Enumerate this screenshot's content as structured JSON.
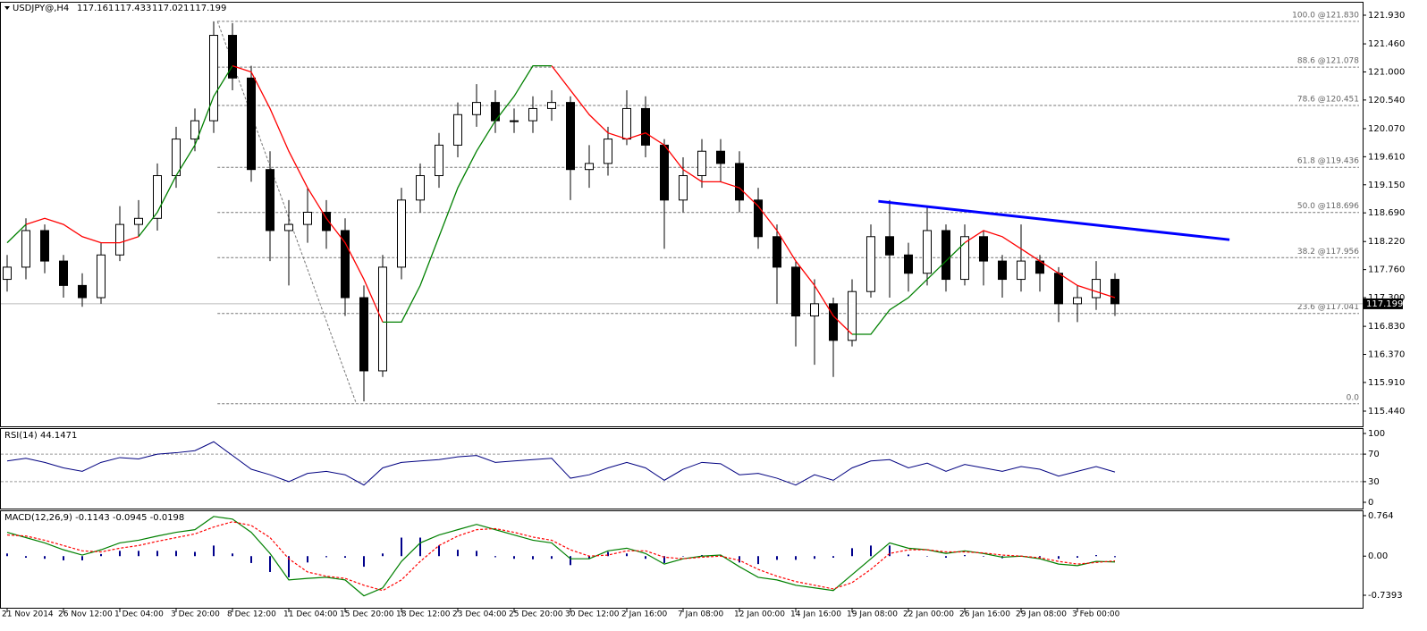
{
  "chart_data": [
    {
      "type": "candlestick",
      "title": "USDJPY@,H4",
      "header_values": [
        117.161,
        117.433,
        117.021,
        117.199
      ],
      "categories": [
        "21 Nov 2014",
        null,
        null,
        "26 Nov 12:00",
        null,
        null,
        "1 Dec 04:00",
        null,
        null,
        "3 Dec 20:00",
        null,
        null,
        "8 Dec 12:00",
        null,
        null,
        "11 Dec 04:00",
        null,
        null,
        "15 Dec 20:00",
        null,
        null,
        "18 Dec 12:00",
        null,
        null,
        "23 Dec 04:00",
        null,
        null,
        "25 Dec 20:00",
        null,
        null,
        "30 Dec 12:00",
        null,
        null,
        "2 Jan 16:00",
        null,
        null,
        "7 Jan 08:00",
        null,
        null,
        "12 Jan 00:00",
        null,
        null,
        "14 Jan 16:00",
        null,
        null,
        "19 Jan 08:00",
        null,
        null,
        "22 Jan 00:00",
        null,
        null,
        "26 Jan 16:00",
        null,
        null,
        "29 Jan 08:00",
        null,
        null,
        "3 Feb 00:00",
        null,
        null
      ],
      "open": [
        117.6,
        117.8,
        118.4,
        117.9,
        117.5,
        117.3,
        118.0,
        118.5,
        118.6,
        119.3,
        119.9,
        120.2,
        121.6,
        120.9,
        119.4,
        118.4,
        118.5,
        118.7,
        118.4,
        117.3,
        116.1,
        117.8,
        118.9,
        119.3,
        119.8,
        120.3,
        120.5,
        120.2,
        120.2,
        120.4,
        120.5,
        119.4,
        119.5,
        119.9,
        120.4,
        119.8,
        118.9,
        119.3,
        119.7,
        119.5,
        118.9,
        118.3,
        117.8,
        117.0,
        117.2,
        116.6,
        117.4,
        118.3,
        118.0,
        117.7,
        118.4,
        117.6,
        118.3,
        117.9,
        117.6,
        117.9,
        117.7,
        117.2,
        117.3,
        117.6
      ],
      "high": [
        118.0,
        118.6,
        118.5,
        118.0,
        117.7,
        118.2,
        118.8,
        118.9,
        119.5,
        120.1,
        120.4,
        121.83,
        121.8,
        121.1,
        119.7,
        118.9,
        119.1,
        118.9,
        118.6,
        117.5,
        118.0,
        119.1,
        119.5,
        120.0,
        120.5,
        120.8,
        120.7,
        120.4,
        120.6,
        120.7,
        120.6,
        119.8,
        120.1,
        120.7,
        120.6,
        119.9,
        119.6,
        119.9,
        119.9,
        119.7,
        119.1,
        118.5,
        117.9,
        117.6,
        117.3,
        117.6,
        118.5,
        118.9,
        118.2,
        118.8,
        118.5,
        118.5,
        118.4,
        118.0,
        118.5,
        118.0,
        117.8,
        117.5,
        117.9,
        117.7
      ],
      "low": [
        117.4,
        117.6,
        117.7,
        117.3,
        117.15,
        117.2,
        117.9,
        118.3,
        118.4,
        119.1,
        119.7,
        120.0,
        120.7,
        119.2,
        117.9,
        117.5,
        118.2,
        118.1,
        117.0,
        115.6,
        116.0,
        117.6,
        118.7,
        119.1,
        119.6,
        120.1,
        120.0,
        120.0,
        120.0,
        120.2,
        118.9,
        119.1,
        119.3,
        119.8,
        119.6,
        118.1,
        118.7,
        119.1,
        119.2,
        118.7,
        118.1,
        117.2,
        116.5,
        116.2,
        116.0,
        116.5,
        117.3,
        117.3,
        117.4,
        117.5,
        117.4,
        117.5,
        117.5,
        117.3,
        117.4,
        117.4,
        116.9,
        116.9,
        117.1,
        117.0
      ],
      "close": [
        117.8,
        118.4,
        117.9,
        117.5,
        117.3,
        118.0,
        118.5,
        118.6,
        119.3,
        119.9,
        120.2,
        121.6,
        120.9,
        119.4,
        118.4,
        118.5,
        118.7,
        118.4,
        117.3,
        116.1,
        117.8,
        118.9,
        119.3,
        119.8,
        120.3,
        120.5,
        120.2,
        120.2,
        120.4,
        120.5,
        119.4,
        119.5,
        119.9,
        120.4,
        119.8,
        118.9,
        119.3,
        119.7,
        119.5,
        118.9,
        118.3,
        117.8,
        117.0,
        117.2,
        116.6,
        117.4,
        118.3,
        118.0,
        117.7,
        118.4,
        117.6,
        118.3,
        117.9,
        117.6,
        117.9,
        117.7,
        117.2,
        117.3,
        117.6,
        117.2
      ],
      "series": [
        {
          "color": "#008000",
          "values": [
            118.2,
            118.5,
            null,
            null,
            null,
            null,
            null,
            118.3,
            118.7,
            119.3,
            119.8,
            120.6,
            121.1,
            null,
            null,
            null,
            null,
            null,
            null,
            null,
            116.9,
            116.9,
            117.5,
            118.3,
            119.1,
            119.7,
            120.2,
            120.6,
            121.1,
            121.1,
            null,
            null,
            null,
            null,
            null,
            null,
            null,
            null,
            null,
            null,
            null,
            null,
            null,
            null,
            null,
            116.7,
            116.7,
            117.1,
            117.3,
            117.6,
            117.9,
            118.2,
            null,
            null,
            null,
            null,
            null,
            null,
            null,
            null
          ]
        },
        {
          "color": "#ff0000",
          "values": [
            null,
            118.5,
            118.6,
            118.5,
            118.3,
            118.2,
            118.2,
            118.3,
            null,
            null,
            null,
            null,
            121.1,
            121.0,
            120.4,
            119.7,
            119.1,
            118.6,
            118.2,
            117.6,
            116.9,
            null,
            null,
            null,
            null,
            null,
            null,
            null,
            null,
            121.1,
            120.7,
            120.3,
            120.0,
            119.9,
            120.0,
            119.8,
            119.4,
            119.2,
            119.2,
            119.1,
            118.8,
            118.4,
            117.9,
            117.5,
            117.0,
            116.7,
            null,
            null,
            null,
            null,
            null,
            118.2,
            118.4,
            118.3,
            118.1,
            117.9,
            117.7,
            117.5,
            117.4,
            117.3
          ]
        }
      ],
      "fib_anchor_x": [
        11.2,
        18.6
      ],
      "fib_levels": [
        {
          "value": 121.83,
          "label": "100.0 @121.830"
        },
        {
          "value": 121.078,
          "label": "88.6 @121.078"
        },
        {
          "value": 120.451,
          "label": "78.6 @120.451"
        },
        {
          "value": 119.436,
          "label": "61.8 @119.436"
        },
        {
          "value": 118.696,
          "label": "50.0 @118.696"
        },
        {
          "value": 117.956,
          "label": "38.2 @117.956"
        },
        {
          "value": 117.041,
          "label": "23.6 @117.041"
        },
        {
          "value": 115.56,
          "label": "0.0"
        }
      ],
      "trendline": {
        "color": "#0000ff",
        "x": [
          46.4,
          65.1
        ],
        "values": [
          118.88,
          118.25
        ]
      },
      "current_price": 117.199,
      "ylim": [
        115.44,
        121.93
      ],
      "yticks": [
        {
          "value": 115.44,
          "label": "115.440"
        },
        {
          "value": 115.91,
          "label": "115.910"
        },
        {
          "value": 116.37,
          "label": "116.370"
        },
        {
          "value": 116.83,
          "label": "116.830"
        },
        {
          "value": 117.3,
          "label": "117.300"
        },
        {
          "value": 117.76,
          "label": "117.760"
        },
        {
          "value": 118.22,
          "label": "118.220"
        },
        {
          "value": 118.69,
          "label": "118.690"
        },
        {
          "value": 119.15,
          "label": "119.150"
        },
        {
          "value": 119.61,
          "label": "119.610"
        },
        {
          "value": 120.07,
          "label": "120.070"
        },
        {
          "value": 120.54,
          "label": "120.540"
        },
        {
          "value": 121.0,
          "label": "121.000"
        },
        {
          "value": 121.46,
          "label": "121.460"
        },
        {
          "value": 121.93,
          "label": "121.930"
        }
      ]
    },
    {
      "type": "line",
      "title": "RSI(14) 44.1471",
      "color": "#000080",
      "values": [
        60,
        64,
        58,
        50,
        45,
        58,
        65,
        63,
        70,
        72,
        75,
        88,
        68,
        48,
        40,
        30,
        42,
        45,
        40,
        25,
        50,
        58,
        60,
        62,
        66,
        68,
        58,
        60,
        62,
        64,
        35,
        40,
        50,
        58,
        50,
        32,
        48,
        58,
        56,
        40,
        42,
        35,
        25,
        40,
        32,
        50,
        60,
        62,
        50,
        57,
        45,
        55,
        50,
        45,
        52,
        48,
        38,
        45,
        52,
        44
      ],
      "levels": [
        30,
        70
      ],
      "ylim": [
        0,
        100
      ],
      "yticks": [
        0,
        30,
        70,
        100
      ]
    },
    {
      "type": "macd",
      "title": "MACD(12,26,9) -0.1143 -0.0945 -0.0198",
      "histogram": [
        0.05,
        -0.03,
        -0.05,
        -0.08,
        -0.08,
        0.04,
        0.1,
        0.1,
        0.1,
        0.1,
        0.08,
        0.2,
        0.05,
        -0.13,
        -0.3,
        -0.4,
        -0.12,
        -0.02,
        -0.03,
        -0.2,
        0.05,
        0.35,
        0.35,
        0.2,
        0.12,
        0.1,
        -0.02,
        -0.05,
        -0.06,
        -0.05,
        -0.17,
        -0.05,
        0.08,
        0.05,
        -0.05,
        -0.13,
        0.0,
        0.02,
        0.02,
        -0.12,
        -0.15,
        -0.07,
        -0.07,
        -0.05,
        -0.03,
        0.15,
        0.2,
        0.2,
        0.03,
        0.0,
        -0.03,
        0.02,
        -0.01,
        -0.04,
        0.0,
        -0.02,
        -0.05,
        -0.03,
        0.02,
        -0.02
      ],
      "macd": [
        0.45,
        0.35,
        0.25,
        0.12,
        0.02,
        0.12,
        0.25,
        0.3,
        0.38,
        0.45,
        0.5,
        0.75,
        0.7,
        0.45,
        0.05,
        -0.45,
        -0.42,
        -0.4,
        -0.45,
        -0.75,
        -0.6,
        -0.1,
        0.25,
        0.4,
        0.5,
        0.6,
        0.5,
        0.4,
        0.3,
        0.25,
        -0.05,
        -0.05,
        0.1,
        0.15,
        0.05,
        -0.15,
        -0.05,
        0.0,
        0.02,
        -0.2,
        -0.4,
        -0.45,
        -0.55,
        -0.6,
        -0.65,
        -0.35,
        -0.05,
        0.25,
        0.15,
        0.12,
        0.05,
        0.1,
        0.05,
        -0.02,
        0.0,
        -0.05,
        -0.15,
        -0.18,
        -0.1,
        -0.11
      ],
      "signal": [
        0.4,
        0.38,
        0.3,
        0.2,
        0.1,
        0.08,
        0.15,
        0.2,
        0.28,
        0.35,
        0.42,
        0.55,
        0.65,
        0.58,
        0.35,
        -0.05,
        -0.3,
        -0.38,
        -0.42,
        -0.55,
        -0.65,
        -0.45,
        -0.1,
        0.2,
        0.38,
        0.5,
        0.52,
        0.45,
        0.36,
        0.3,
        0.12,
        0.0,
        0.02,
        0.1,
        0.1,
        -0.02,
        -0.05,
        -0.02,
        0.0,
        -0.08,
        -0.25,
        -0.38,
        -0.48,
        -0.55,
        -0.62,
        -0.5,
        -0.25,
        0.05,
        0.12,
        0.12,
        0.08,
        0.08,
        0.06,
        0.02,
        0.0,
        -0.03,
        -0.1,
        -0.15,
        -0.12,
        -0.09
      ],
      "colors": {
        "histogram": "#00008b",
        "macd": "#008000",
        "signal": "#ff0000"
      },
      "ylim": [
        -0.7393,
        0.764
      ],
      "yticks": [
        -0.7393,
        {
          "value": 0,
          "label": "0.00"
        },
        0.764
      ]
    }
  ]
}
